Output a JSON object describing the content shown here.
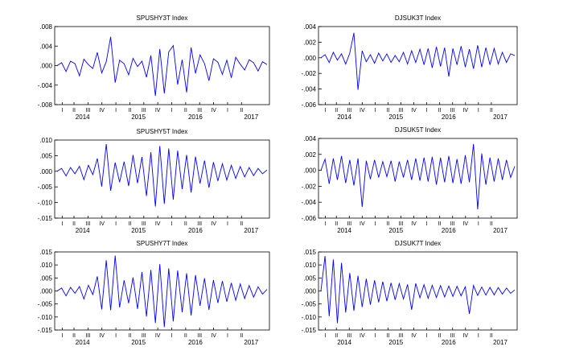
{
  "chart_data": [
    {
      "type": "line",
      "title": "SPUSHY3T Index",
      "ylim": [
        -0.008,
        0.008
      ],
      "yticks": [
        -0.008,
        -0.004,
        0.0,
        0.004,
        0.008
      ],
      "ytick_labels": [
        "-.008",
        "-.004",
        ".000",
        ".004",
        ".008"
      ],
      "quarter_labels": [
        "I",
        "II",
        "III",
        "IV",
        "I",
        "II",
        "III",
        "IV",
        "I",
        "II",
        "III",
        "IV",
        "I",
        "II"
      ],
      "year_labels": [
        "2014",
        "2015",
        "2016",
        "2017"
      ],
      "series": [
        {
          "values": [
            0.0,
            0.0006,
            -0.0012,
            0.0009,
            0.0004,
            -0.0021,
            0.0013,
            0.0002,
            -0.0006,
            0.0027,
            -0.0015,
            0.0008,
            0.0059,
            -0.0035,
            0.0011,
            0.0004,
            -0.0019,
            0.0015,
            -0.0002,
            0.0009,
            -0.0024,
            0.0021,
            -0.0062,
            0.0034,
            -0.0057,
            0.0028,
            0.0041,
            -0.0039,
            0.0012,
            -0.0055,
            0.0037,
            -0.0016,
            0.0022,
            0.0004,
            -0.0031,
            0.0014,
            0.0007,
            -0.0018,
            0.0011,
            -0.0025,
            0.0017,
            0.0003,
            -0.0009,
            0.0012,
            0.0006,
            -0.0011,
            0.0008,
            0.0002
          ]
        }
      ],
      "grid": false,
      "color": "#0000ff"
    },
    {
      "type": "line",
      "title": "DJSUK3T Index",
      "ylim": [
        -0.006,
        0.004
      ],
      "yticks": [
        -0.006,
        -0.004,
        -0.002,
        0.0,
        0.002,
        0.004
      ],
      "ytick_labels": [
        "-.006",
        "-.004",
        "-.002",
        ".000",
        ".002",
        ".004"
      ],
      "quarter_labels": [
        "I",
        "II",
        "III",
        "IV",
        "I",
        "II",
        "III",
        "IV",
        "I",
        "II",
        "III",
        "IV",
        "I",
        "II"
      ],
      "year_labels": [
        "2014",
        "2015",
        "2016",
        "2017"
      ],
      "series": [
        {
          "values": [
            0.0,
            0.0004,
            -0.0006,
            0.0007,
            -0.0003,
            0.0005,
            -0.0008,
            0.0006,
            0.0032,
            -0.0041,
            0.0009,
            -0.0005,
            0.0004,
            -0.0007,
            0.0006,
            -0.0004,
            0.0005,
            -0.0006,
            0.0003,
            -0.0005,
            0.0007,
            -0.0008,
            0.0009,
            -0.0006,
            0.0011,
            -0.0009,
            0.0012,
            -0.0013,
            0.0014,
            -0.0011,
            0.0013,
            -0.0024,
            0.0012,
            -0.0009,
            0.0015,
            -0.0012,
            0.0011,
            -0.0014,
            0.0016,
            -0.0012,
            0.0013,
            -0.0009,
            0.0012,
            -0.0008,
            0.0007,
            -0.0006,
            0.0005,
            0.0003
          ]
        }
      ],
      "grid": false,
      "color": "#0000ff"
    },
    {
      "type": "line",
      "title": "SPUSHY5T Index",
      "ylim": [
        -0.015,
        0.01
      ],
      "yticks": [
        -0.015,
        -0.01,
        -0.005,
        0.0,
        0.005,
        0.01
      ],
      "ytick_labels": [
        "-.015",
        "-.010",
        "-.005",
        ".000",
        ".005",
        ".010"
      ],
      "quarter_labels": [
        "I",
        "II",
        "III",
        "IV",
        "I",
        "II",
        "III",
        "IV",
        "I",
        "II",
        "III",
        "IV",
        "I",
        "II"
      ],
      "year_labels": [
        "2014",
        "2015",
        "2016",
        "2017"
      ],
      "series": [
        {
          "values": [
            0.0,
            0.0009,
            -0.0015,
            0.0012,
            -0.0008,
            0.0016,
            -0.0027,
            0.0019,
            -0.0011,
            0.0041,
            -0.0049,
            0.0087,
            -0.0062,
            0.0028,
            -0.0035,
            0.0031,
            -0.0047,
            0.0052,
            -0.0038,
            0.0046,
            -0.0079,
            0.0061,
            -0.0113,
            0.0081,
            -0.0104,
            0.0073,
            -0.0091,
            0.0066,
            -0.0057,
            0.0052,
            -0.0068,
            0.0047,
            -0.0039,
            0.0034,
            -0.0052,
            0.0029,
            -0.0031,
            0.0024,
            -0.0028,
            0.0019,
            -0.0023,
            0.0015,
            -0.0018,
            0.0012,
            -0.0014,
            0.0009,
            -0.0008,
            0.0004
          ]
        }
      ],
      "grid": false,
      "color": "#0000ff"
    },
    {
      "type": "line",
      "title": "DJSUK5T Index",
      "ylim": [
        -0.006,
        0.004
      ],
      "yticks": [
        -0.006,
        -0.004,
        -0.002,
        0.0,
        0.002,
        0.004
      ],
      "ytick_labels": [
        "-.006",
        "-.004",
        "-.002",
        ".000",
        ".002",
        ".004"
      ],
      "quarter_labels": [
        "I",
        "II",
        "III",
        "IV",
        "I",
        "II",
        "III",
        "IV",
        "I",
        "II",
        "III",
        "IV",
        "I",
        "II"
      ],
      "year_labels": [
        "2014",
        "2015",
        "2016",
        "2017"
      ],
      "series": [
        {
          "values": [
            0.0,
            0.0014,
            -0.0017,
            0.0015,
            -0.0012,
            0.0018,
            -0.0016,
            0.0013,
            -0.0019,
            0.0015,
            -0.0046,
            0.0012,
            -0.0011,
            0.0013,
            -0.0009,
            0.0011,
            -0.0008,
            0.0012,
            -0.0014,
            0.0011,
            -0.0009,
            0.0013,
            -0.0012,
            0.0015,
            -0.0013,
            0.0016,
            -0.0014,
            0.0017,
            -0.0018,
            0.0016,
            -0.0015,
            0.0018,
            -0.0016,
            0.0014,
            -0.0017,
            0.0019,
            -0.0015,
            0.0033,
            -0.0049,
            0.0021,
            -0.0018,
            0.0016,
            -0.0014,
            0.0015,
            -0.0012,
            0.0013,
            -0.0009,
            0.0005
          ]
        }
      ],
      "grid": false,
      "color": "#0000ff"
    },
    {
      "type": "line",
      "title": "SPUSHY7T Index",
      "ylim": [
        -0.015,
        0.015
      ],
      "yticks": [
        -0.015,
        -0.01,
        -0.005,
        0.0,
        0.005,
        0.01,
        0.015
      ],
      "ytick_labels": [
        "-.015",
        "-.010",
        "-.005",
        ".000",
        ".005",
        ".010",
        ".015"
      ],
      "quarter_labels": [
        "I",
        "II",
        "III",
        "IV",
        "I",
        "II",
        "III",
        "IV",
        "I",
        "II",
        "III",
        "IV",
        "I",
        "II"
      ],
      "year_labels": [
        "2014",
        "2015",
        "2016",
        "2017"
      ],
      "series": [
        {
          "values": [
            0.0,
            0.0011,
            -0.0019,
            0.0014,
            -0.0009,
            0.0017,
            -0.0031,
            0.0022,
            -0.0014,
            0.0056,
            -0.0071,
            0.0118,
            -0.0074,
            0.0136,
            -0.0063,
            0.0041,
            -0.0047,
            0.0052,
            -0.0069,
            0.0073,
            -0.0098,
            0.0081,
            -0.0123,
            0.0103,
            -0.0139,
            0.0087,
            -0.0117,
            0.0079,
            -0.0082,
            0.0068,
            -0.0094,
            0.0061,
            -0.0057,
            0.0049,
            -0.0072,
            0.0042,
            -0.0046,
            0.0038,
            -0.0041,
            0.0031,
            -0.0036,
            0.0027,
            -0.0029,
            0.0021,
            -0.0024,
            0.0016,
            -0.0012,
            0.0006
          ]
        }
      ],
      "grid": false,
      "color": "#0000ff"
    },
    {
      "type": "line",
      "title": "DJSUK7T Index",
      "ylim": [
        -0.015,
        0.015
      ],
      "yticks": [
        -0.015,
        -0.01,
        -0.005,
        0.0,
        0.005,
        0.01,
        0.015
      ],
      "ytick_labels": [
        "-.015",
        "-.010",
        "-.005",
        ".000",
        ".005",
        ".010",
        ".015"
      ],
      "quarter_labels": [
        "I",
        "II",
        "III",
        "IV",
        "I",
        "II",
        "III",
        "IV",
        "I",
        "II",
        "III",
        "IV",
        "I",
        "II"
      ],
      "year_labels": [
        "2014",
        "2015",
        "2016",
        "2017"
      ],
      "series": [
        {
          "values": [
            0.0,
            0.0134,
            -0.0097,
            0.0121,
            -0.0124,
            0.0108,
            -0.0083,
            0.0069,
            -0.0076,
            0.0058,
            -0.0062,
            0.0047,
            -0.0053,
            0.0041,
            -0.0044,
            0.0036,
            -0.0039,
            0.0031,
            -0.0034,
            0.0028,
            -0.0031,
            0.0025,
            -0.0072,
            0.0029,
            -0.0026,
            0.0024,
            -0.0028,
            0.0022,
            -0.0025,
            0.0021,
            -0.0023,
            0.0019,
            -0.0021,
            0.0018,
            -0.0019,
            0.0016,
            -0.0088,
            0.0021,
            -0.0017,
            0.0015,
            -0.0016,
            0.0014,
            -0.0015,
            0.0013,
            -0.0012,
            0.0011,
            -0.0009,
            0.0004
          ]
        }
      ],
      "grid": false,
      "color": "#0000ff"
    }
  ]
}
